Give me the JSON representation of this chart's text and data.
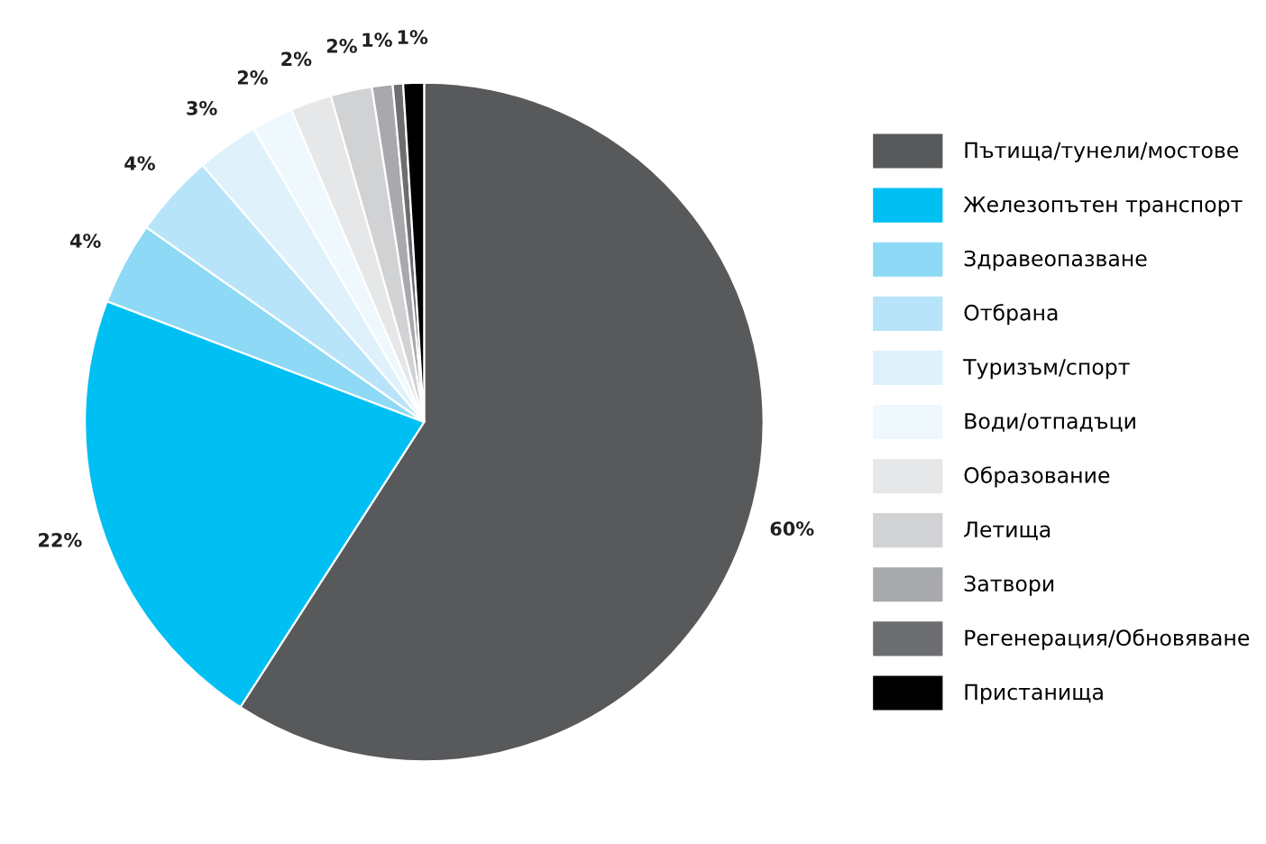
{
  "chart_data": {
    "type": "pie",
    "categories": [
      "Пътища/тунели/мостове",
      "Железопътен транспорт",
      "Здравеопазване",
      "Отбрана",
      "Туризъм/спорт",
      "Води/отпадъци",
      "Образование",
      "Летища",
      "Затвори",
      "Регенерация/Обновяване",
      "Пристанища"
    ],
    "values": [
      60,
      22,
      4,
      4,
      3,
      2,
      2,
      2,
      1,
      0.5,
      1
    ],
    "value_labels": [
      "60%",
      "22%",
      "4%",
      "4%",
      "3%",
      "2%",
      "2%",
      "2%",
      "1%",
      null,
      "1%"
    ],
    "colors": [
      "#58595b",
      "#00bff3",
      "#8dd9f6",
      "#b8e4f9",
      "#dff2fc",
      "#eef8fd",
      "#e6e7e8",
      "#d1d2d4",
      "#a7a9ac",
      "#6d6e71",
      "#000000"
    ],
    "legend": "right"
  }
}
